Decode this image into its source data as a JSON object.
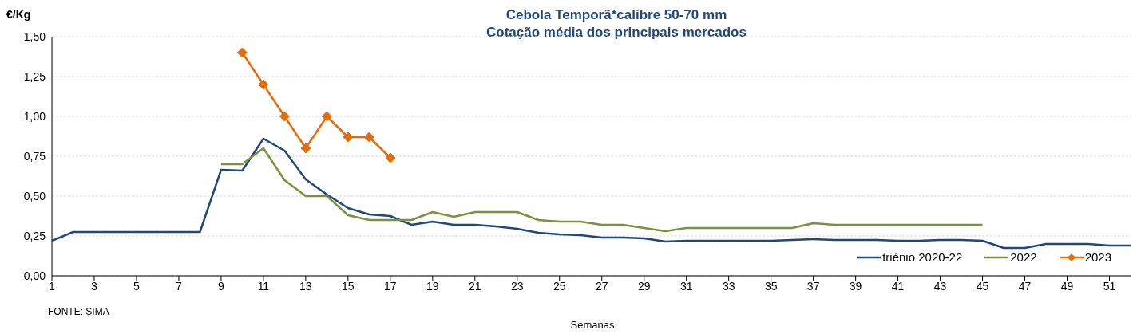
{
  "chart_data": {
    "type": "line",
    "title": "Cebola Temporã*calibre 50-70 mm",
    "subtitle": "Cotação média dos principais mercados",
    "ylabel": "€/Kg",
    "xlabel": "Semanas",
    "annotations": [
      "FONTE: SIMA"
    ],
    "x": [
      1,
      2,
      3,
      4,
      5,
      6,
      7,
      8,
      9,
      10,
      11,
      12,
      13,
      14,
      15,
      16,
      17,
      18,
      19,
      20,
      21,
      22,
      23,
      24,
      25,
      26,
      27,
      28,
      29,
      30,
      31,
      32,
      33,
      34,
      35,
      36,
      37,
      38,
      39,
      40,
      41,
      42,
      43,
      44,
      45,
      46,
      47,
      48,
      49,
      50,
      51,
      52
    ],
    "series": [
      {
        "name": "triénio 2020-22",
        "color": "#1f497d",
        "marker": "none",
        "values": [
          0.22,
          0.275,
          0.275,
          0.275,
          0.275,
          0.275,
          0.275,
          0.275,
          0.665,
          0.66,
          0.86,
          0.785,
          0.605,
          0.51,
          0.425,
          0.385,
          0.375,
          0.32,
          0.34,
          0.32,
          0.32,
          0.31,
          0.295,
          0.27,
          0.26,
          0.255,
          0.24,
          0.24,
          0.235,
          0.215,
          0.22,
          0.22,
          0.22,
          0.22,
          0.22,
          0.225,
          0.23,
          0.225,
          0.225,
          0.225,
          0.22,
          0.22,
          0.225,
          0.225,
          0.22,
          0.175,
          0.175,
          0.2,
          0.2,
          0.2,
          0.19,
          0.19
        ]
      },
      {
        "name": "2022",
        "color": "#77933c",
        "marker": "none",
        "values": [
          null,
          null,
          null,
          null,
          null,
          null,
          null,
          null,
          0.7,
          0.7,
          0.8,
          0.6,
          0.5,
          0.5,
          0.38,
          0.35,
          0.35,
          0.35,
          0.4,
          0.37,
          0.4,
          0.4,
          0.4,
          0.35,
          0.34,
          0.34,
          0.32,
          0.32,
          0.3,
          0.28,
          0.3,
          0.3,
          0.3,
          0.3,
          0.3,
          0.3,
          0.33,
          0.32,
          0.32,
          0.32,
          0.32,
          0.32,
          0.32,
          0.32,
          0.32,
          null,
          null,
          null,
          null,
          null,
          null,
          null
        ]
      },
      {
        "name": "2023",
        "color": "#e46c0a",
        "marker": "diamond",
        "values": [
          null,
          null,
          null,
          null,
          null,
          null,
          null,
          null,
          null,
          1.4,
          1.2,
          1.0,
          0.8,
          1.0,
          0.87,
          0.87,
          0.74,
          null,
          null,
          null,
          null,
          null,
          null,
          null,
          null,
          null,
          null,
          null,
          null,
          null,
          null,
          null,
          null,
          null,
          null,
          null,
          null,
          null,
          null,
          null,
          null,
          null,
          null,
          null,
          null,
          null,
          null,
          null,
          null,
          null,
          null,
          null
        ]
      }
    ],
    "xlim": [
      1,
      52
    ],
    "xticks": [
      1,
      3,
      5,
      7,
      9,
      11,
      13,
      15,
      17,
      19,
      21,
      23,
      25,
      27,
      29,
      31,
      33,
      35,
      37,
      39,
      41,
      43,
      45,
      47,
      49,
      51
    ],
    "ylim": [
      0,
      1.5
    ],
    "yticks": [
      {
        "value": 0,
        "label": "0,00"
      },
      {
        "value": 0.25,
        "label": "0,25"
      },
      {
        "value": 0.5,
        "label": "0,50"
      },
      {
        "value": 0.75,
        "label": "0,75"
      },
      {
        "value": 1.0,
        "label": "1,00"
      },
      {
        "value": 1.25,
        "label": "1,25"
      },
      {
        "value": 1.5,
        "label": "1,50"
      }
    ],
    "grid": "y",
    "legend": "bottom right"
  }
}
